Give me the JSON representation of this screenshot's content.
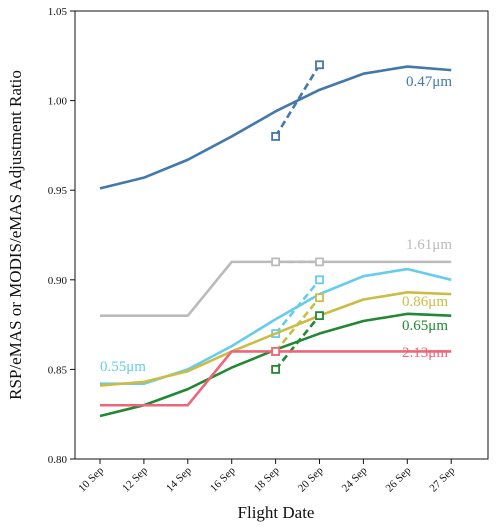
{
  "chart_data": {
    "type": "line",
    "title": "",
    "xlabel": "Flight Date",
    "ylabel": "RSP/eMAS or MODIS/eMAS Adjustment Ratio",
    "categories": [
      "10 Sep",
      "12 Sep",
      "14 Sep",
      "16 Sep",
      "18 Sep",
      "20 Sep",
      "24 Sep",
      "26 Sep",
      "27 Sep"
    ],
    "ylim": [
      0.8,
      1.05
    ],
    "yticks": [
      "0.80",
      "0.85",
      "0.90",
      "0.95",
      "1.00",
      "1.05"
    ],
    "grid": false,
    "series": [
      {
        "name": "0.47μm",
        "color": "#4477aa",
        "values": [
          0.951,
          0.957,
          0.967,
          0.98,
          0.994,
          1.006,
          1.015,
          1.019,
          1.017
        ],
        "dashed_values": [
          null,
          null,
          null,
          null,
          0.98,
          1.02,
          null,
          null,
          null
        ]
      },
      {
        "name": "1.61μm",
        "color": "#bbbbbb",
        "values": [
          0.88,
          0.88,
          0.88,
          0.91,
          0.91,
          0.91,
          0.91,
          0.91,
          0.91
        ],
        "dashed_values": [
          null,
          null,
          null,
          null,
          0.91,
          0.91,
          null,
          null,
          null
        ]
      },
      {
        "name": "0.55μm",
        "color": "#66ccee",
        "values": [
          0.842,
          0.842,
          0.85,
          0.863,
          0.878,
          0.892,
          0.902,
          0.906,
          0.9
        ],
        "dashed_values": [
          null,
          null,
          null,
          null,
          0.87,
          0.9,
          null,
          null,
          null
        ]
      },
      {
        "name": "0.86μm",
        "color": "#ccbb44",
        "values": [
          0.841,
          0.843,
          0.849,
          0.86,
          0.87,
          0.88,
          0.889,
          0.893,
          0.892
        ],
        "dashed_values": [
          null,
          null,
          null,
          null,
          0.86,
          0.89,
          null,
          null,
          null
        ]
      },
      {
        "name": "0.65μm",
        "color": "#228833",
        "values": [
          0.824,
          0.83,
          0.839,
          0.851,
          0.861,
          0.87,
          0.877,
          0.881,
          0.88
        ],
        "dashed_values": [
          null,
          null,
          null,
          null,
          0.85,
          0.88,
          null,
          null,
          null
        ]
      },
      {
        "name": "2.13μm",
        "color": "#ee6677",
        "values": [
          0.83,
          0.83,
          0.83,
          0.86,
          0.86,
          0.86,
          0.86,
          0.86,
          0.86
        ],
        "dashed_values": [
          null,
          null,
          null,
          null,
          0.86,
          null,
          null,
          null,
          null
        ]
      }
    ]
  }
}
